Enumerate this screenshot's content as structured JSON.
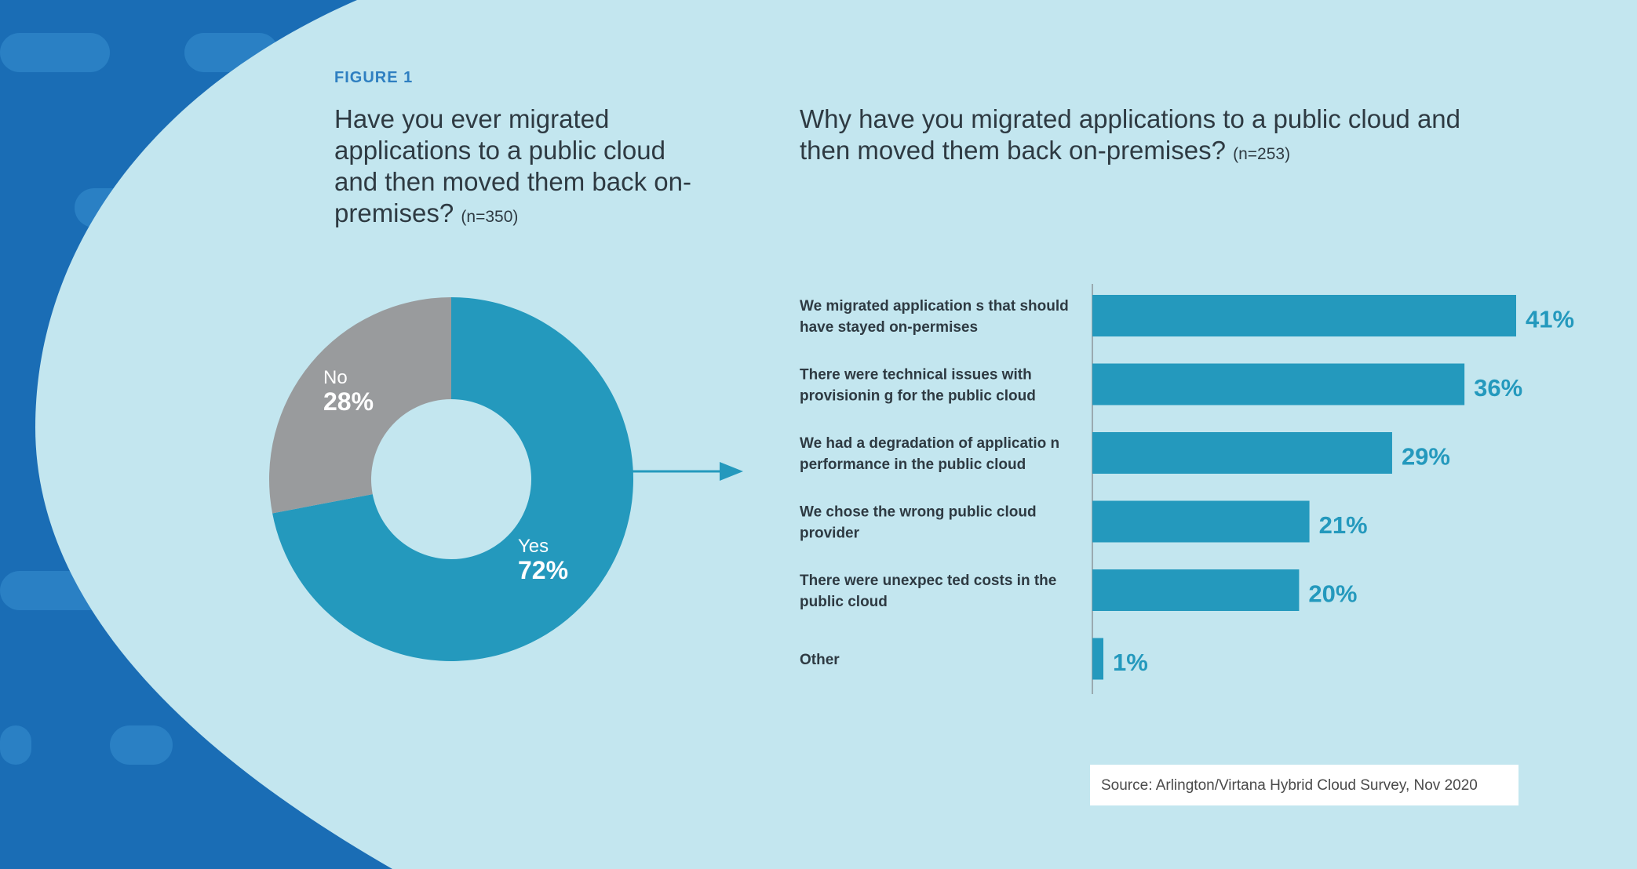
{
  "figure_label": "FIGURE 1",
  "question1": {
    "text": "Have you ever migrated applications to a public cloud and then moved them back on-premises?",
    "n": "(n=350)"
  },
  "question2": {
    "text": "Why have you migrated applications to a public cloud and then moved them back on-premises?",
    "n": "(n=253)"
  },
  "source": "Source: Arlington/Virtana Hybrid Cloud Survey, Nov 2020",
  "colors": {
    "background_dark": "#1a6db5",
    "panel_light": "#c3e6ef",
    "bar_teal": "#2499bd",
    "slice_gray": "#999b9d",
    "label_text": "#2e3a42"
  },
  "chart_data": [
    {
      "type": "pie",
      "title": "Have you ever migrated applications to a public cloud and then moved them back on-premises?",
      "slices": [
        {
          "name": "Yes",
          "value": 72,
          "label": "72%",
          "color": "#2499bd"
        },
        {
          "name": "No",
          "value": 28,
          "label": "28%",
          "color": "#999b9d"
        }
      ]
    },
    {
      "type": "bar",
      "orientation": "horizontal",
      "title": "Why have you migrated applications to a public cloud and then moved them back on-premises?",
      "categories": [
        [
          "We migrated application s that should",
          "have stayed on-permises"
        ],
        [
          "There were technical issues with",
          "provisionin g for the public cloud"
        ],
        [
          "We had a degradation of applicatio n",
          "performance in the public cloud"
        ],
        [
          "We chose the wrong public cloud",
          "provider"
        ],
        [
          "There were unexpec ted costs in the",
          "public cloud"
        ],
        [
          "Other"
        ]
      ],
      "values": [
        41,
        36,
        29,
        21,
        20,
        1
      ],
      "value_labels": [
        "41%",
        "36%",
        "29%",
        "21%",
        "20%",
        "1%"
      ],
      "xlim": [
        0,
        50
      ]
    }
  ]
}
